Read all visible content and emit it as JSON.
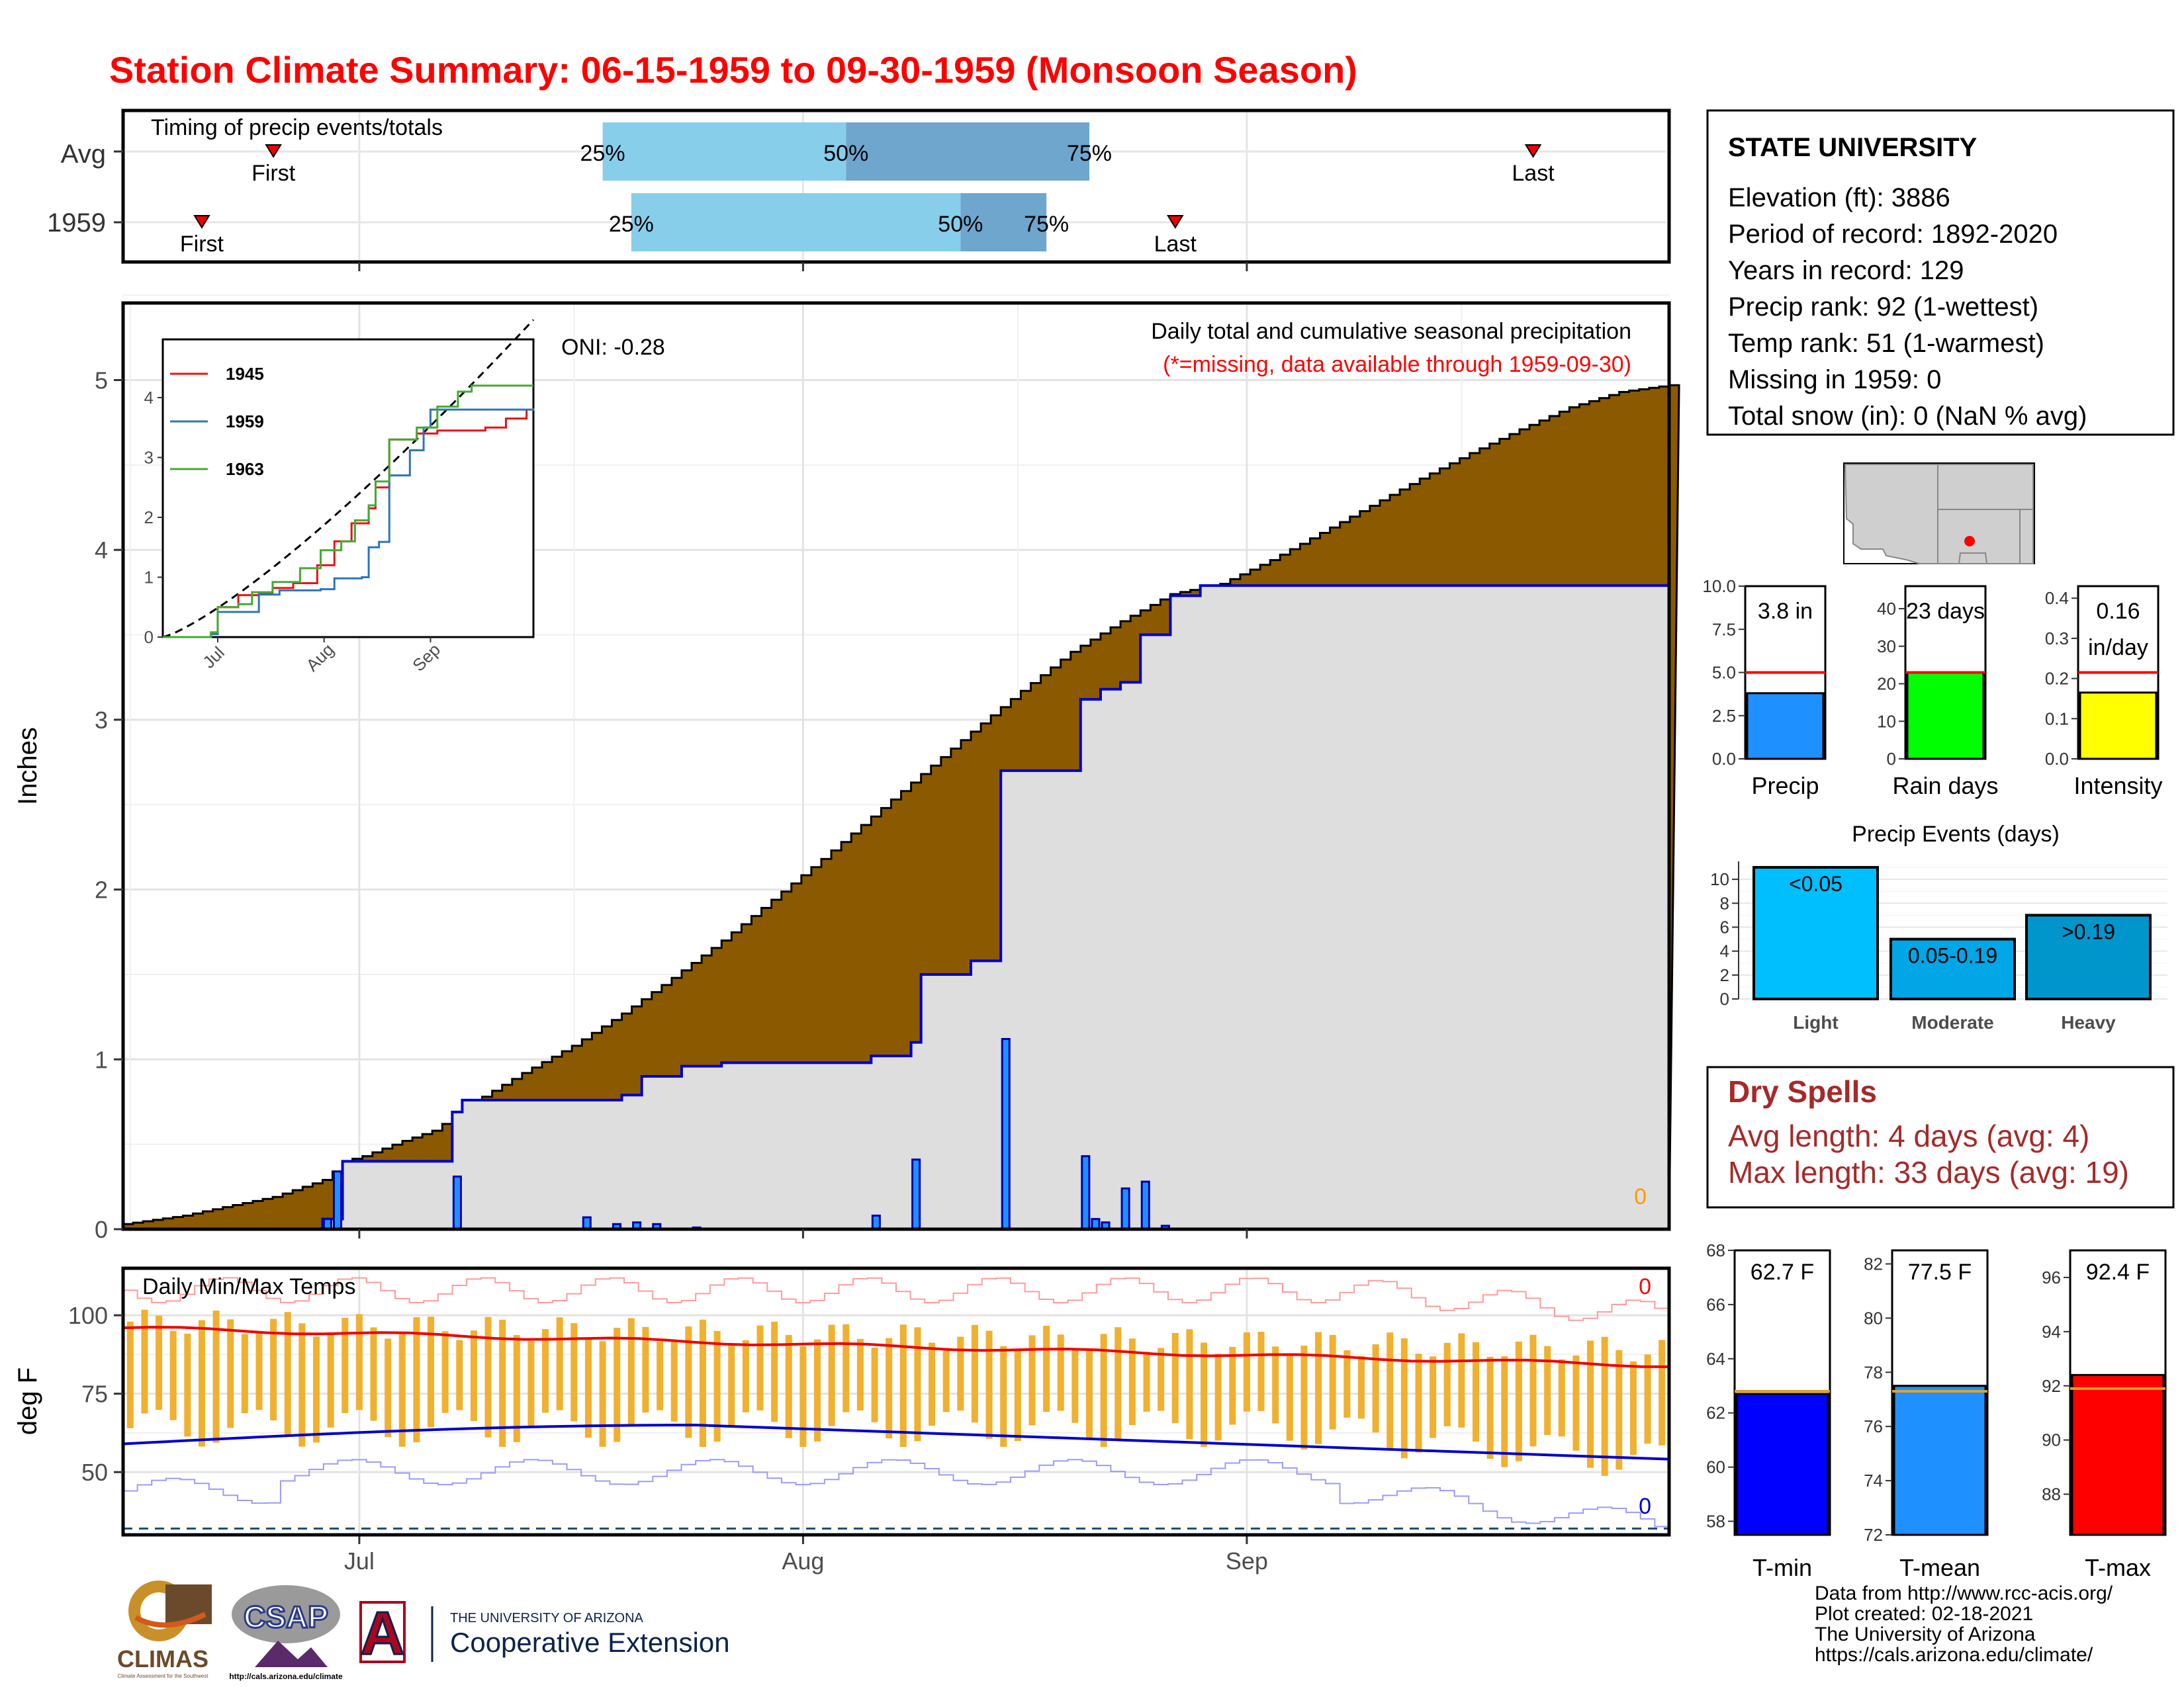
{
  "title": "Station Climate Summary: 06-15-1959 to 09-30-1959 (Monsoon Season)",
  "colors": {
    "title": "#ff0000",
    "cum_avg_fill": "#8b5a00",
    "cum_surplus_fill": "#008800",
    "cum_obs_fill": "#dedede",
    "daily_bar": "#1e90ff",
    "avg_red": "#ff0000",
    "max_blue": "#0000cc",
    "temp_bar": "#f0b030",
    "quartile_light": "#87ceeb",
    "quartile_dark": "#6ea6cd",
    "dry_spell_text": "#a52a2a"
  },
  "timing_panel": {
    "label": "Timing of precip events/totals",
    "rows": [
      {
        "name": "Avg",
        "first": "06-25",
        "last": "09-21",
        "q25": "07-18",
        "q50": "08-04",
        "q75": "08-21",
        "first_label": "First",
        "last_label": "Last"
      },
      {
        "name": "1959",
        "first": "06-20",
        "last": "08-27",
        "q25": "07-20",
        "q50": "08-12",
        "q75": "08-18",
        "first_label": "First",
        "last_label": "Last"
      }
    ],
    "q_labels": [
      "25%",
      "50%",
      "75%"
    ]
  },
  "main_panel": {
    "ylabel": "Inches",
    "title": "Daily total and cumulative seasonal precipitation",
    "note": "(*=missing, data available through 1959-09-30)",
    "oni": "ONI: -0.28",
    "missing_count": "0",
    "yticks": [
      "0",
      "1",
      "2",
      "3",
      "4",
      "5"
    ],
    "xticks": [
      "Jul",
      "Aug",
      "Sep"
    ]
  },
  "inset": {
    "yticks": [
      "0",
      "1",
      "2",
      "3",
      "4"
    ],
    "xticks": [
      "Jul",
      "Aug",
      "Sep"
    ],
    "legend": [
      {
        "name": "1945",
        "color": "#ee1111"
      },
      {
        "name": "1959",
        "color": "#2e75b6"
      },
      {
        "name": "1963",
        "color": "#44aa33"
      }
    ]
  },
  "temp_panel": {
    "label": "Daily Min/Max Temps",
    "ylabel": "deg F",
    "yticks": [
      "50",
      "75",
      "100"
    ],
    "missing_max": "0",
    "missing_min": "0"
  },
  "info_box": {
    "station": "STATE UNIVERSITY",
    "lines": [
      "Elevation (ft): 3886",
      "Period of record: 1892-2020",
      "Years in record: 129",
      "Precip rank: 92 (1-wettest)",
      "Temp rank: 51 (1-warmest)",
      "Missing in 1959: 0",
      "Total snow (in): 0 (NaN % avg)"
    ]
  },
  "summary_bars": [
    {
      "name": "Precip",
      "label": "3.8 in",
      "value": 3.8,
      "avg": 5.0,
      "yticks": [
        "0.0",
        "2.5",
        "5.0",
        "7.5",
        "10.0"
      ],
      "ymax": 10,
      "color": "#1e90ff"
    },
    {
      "name": "Rain days",
      "label": "23 days",
      "value": 23,
      "avg": 23,
      "yticks": [
        "0",
        "10",
        "20",
        "30",
        "40"
      ],
      "ymax": 46,
      "color": "#00ff00"
    },
    {
      "name": "Intensity",
      "label": "0.16",
      "label2": "in/day",
      "value": 0.165,
      "avg": 0.215,
      "yticks": [
        "0.0",
        "0.1",
        "0.2",
        "0.3",
        "0.4"
      ],
      "ymax": 0.43,
      "color": "#ffff00"
    }
  ],
  "precip_events": {
    "title": "Precip Events (days)",
    "yticks": [
      "0",
      "2",
      "4",
      "6",
      "8",
      "10"
    ],
    "bars": [
      {
        "name": "Light",
        "label": "<0.05",
        "value": 11,
        "color": "#00bfff"
      },
      {
        "name": "Moderate",
        "label": "0.05-0.19",
        "value": 5,
        "color": "#00a6e6"
      },
      {
        "name": "Heavy",
        "label": ">0.19",
        "value": 7,
        "color": "#0096cc"
      }
    ]
  },
  "dry_spells": {
    "title": "Dry Spells",
    "avg_line": "Avg length: 4 days (avg: 4)",
    "max_line": "Max length: 33 days (avg: 19)"
  },
  "temp_bars": [
    {
      "name": "T-min",
      "label": "62.7 F",
      "value": 62.7,
      "avg": 62.8,
      "ymin": 57.5,
      "ymax": 68,
      "yticks": [
        "58",
        "60",
        "62",
        "64",
        "66",
        "68"
      ],
      "color": "#0000ff"
    },
    {
      "name": "T-mean",
      "label": "77.5 F",
      "value": 77.5,
      "avg": 77.3,
      "ymin": 72,
      "ymax": 82.5,
      "yticks": [
        "72",
        "74",
        "76",
        "78",
        "80",
        "82"
      ],
      "color": "#1e90ff"
    },
    {
      "name": "T-max",
      "label": "92.4 F",
      "value": 92.4,
      "avg": 91.9,
      "ymin": 86.5,
      "ymax": 97,
      "yticks": [
        "88",
        "90",
        "92",
        "94",
        "96"
      ],
      "color": "#ff0000"
    }
  ],
  "footer": [
    "Data from http://www.rcc-acis.org/",
    "Plot created: 02-18-2021",
    "The University of Arizona",
    "https://cals.arizona.edu/climate/"
  ],
  "logos": {
    "climas": "CLIMAS",
    "climas_sub": "Climate Assessment for the Southwest",
    "csap": "CSAP",
    "csap_url": "http://cals.arizona.edu/climate",
    "ua_letter": "A",
    "ua_line1": "THE UNIVERSITY OF ARIZONA",
    "ua_line2": "Cooperative Extension"
  },
  "chart_data": {
    "type": "area",
    "title": "Daily total and cumulative seasonal precipitation",
    "ylabel": "Inches",
    "ylim": [
      0,
      5.5
    ],
    "x_start": "1959-06-15",
    "x_end": "1959-09-30",
    "xticks": [
      "Jul",
      "Aug",
      "Sep"
    ],
    "series": [
      {
        "name": "cumulative_avg",
        "points": [
          [
            0,
            0.03
          ],
          [
            6,
            0.08
          ],
          [
            10,
            0.13
          ],
          [
            15,
            0.19
          ],
          [
            18,
            0.25
          ],
          [
            20,
            0.29
          ],
          [
            21,
            0.34
          ],
          [
            22,
            0.4
          ],
          [
            24,
            0.43
          ],
          [
            28,
            0.52
          ],
          [
            31,
            0.58
          ],
          [
            33,
            0.66
          ],
          [
            34,
            0.72
          ],
          [
            36,
            0.78
          ],
          [
            40,
            0.92
          ],
          [
            45,
            1.08
          ],
          [
            50,
            1.27
          ],
          [
            55,
            1.48
          ],
          [
            60,
            1.7
          ],
          [
            65,
            1.94
          ],
          [
            70,
            2.18
          ],
          [
            75,
            2.43
          ],
          [
            80,
            2.68
          ],
          [
            85,
            2.93
          ],
          [
            90,
            3.17
          ],
          [
            95,
            3.4
          ],
          [
            100,
            3.58
          ],
          [
            105,
            3.74
          ],
          [
            110,
            3.8
          ],
          [
            115,
            3.94
          ],
          [
            120,
            4.1
          ],
          [
            125,
            4.26
          ],
          [
            130,
            4.42
          ],
          [
            135,
            4.57
          ],
          [
            140,
            4.71
          ],
          [
            145,
            4.84
          ],
          [
            150,
            4.93
          ],
          [
            155,
            4.97
          ]
        ]
      },
      {
        "name": "cumulative_1959",
        "points": [
          [
            0,
            0
          ],
          [
            20,
            0.06
          ],
          [
            22,
            0.4
          ],
          [
            33,
            0.4
          ],
          [
            33,
            0.69
          ],
          [
            34,
            0.76
          ],
          [
            49,
            0.76
          ],
          [
            50,
            0.79
          ],
          [
            52,
            0.9
          ],
          [
            56,
            0.96
          ],
          [
            60,
            0.98
          ],
          [
            74,
            0.98
          ],
          [
            75,
            1.02
          ],
          [
            79,
            1.1
          ],
          [
            80,
            1.5
          ],
          [
            85,
            1.58
          ],
          [
            88,
            1.58
          ],
          [
            88,
            2.7
          ],
          [
            96,
            2.7
          ],
          [
            96,
            3.12
          ],
          [
            98,
            3.18
          ],
          [
            100,
            3.22
          ],
          [
            102,
            3.5
          ],
          [
            105,
            3.52
          ],
          [
            105,
            3.73
          ],
          [
            108,
            3.79
          ],
          [
            155,
            3.79
          ]
        ]
      },
      {
        "name": "daily_precip",
        "points": [
          [
            20,
            0.06
          ],
          [
            21,
            0.34
          ],
          [
            33,
            0.31
          ],
          [
            46,
            0.07
          ],
          [
            49,
            0.03
          ],
          [
            51,
            0.04
          ],
          [
            53,
            0.03
          ],
          [
            57,
            0.01
          ],
          [
            75,
            0.08
          ],
          [
            79,
            0.41
          ],
          [
            88,
            1.12
          ],
          [
            96,
            0.43
          ],
          [
            97,
            0.06
          ],
          [
            98,
            0.04
          ],
          [
            100,
            0.24
          ],
          [
            102,
            0.28
          ],
          [
            104,
            0.02
          ]
        ]
      }
    ],
    "inset": {
      "type": "line",
      "ylim": [
        0,
        5
      ],
      "series": [
        {
          "name": "1945",
          "color": "#ee1111"
        },
        {
          "name": "1959",
          "color": "#2e75b6"
        },
        {
          "name": "1963",
          "color": "#44aa33"
        }
      ]
    },
    "temperature": {
      "type": "bar",
      "ylabel": "deg F",
      "ylim": [
        30,
        110
      ],
      "note": "daily min-max range bars with average max (red) and average min (blue) lines"
    }
  }
}
